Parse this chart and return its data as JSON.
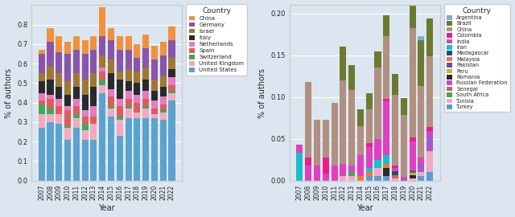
{
  "years": [
    2007,
    2008,
    2009,
    2010,
    2011,
    2012,
    2013,
    2014,
    2015,
    2016,
    2017,
    2018,
    2019,
    2020,
    2021,
    2022
  ],
  "chart1": {
    "title": "Country",
    "ylabel": "% of authors",
    "xlabel": "Year",
    "countries_ordered": [
      "United States",
      "United Kingdom",
      "Switzerland",
      "Spain",
      "Netherlands",
      "Italy",
      "Israel",
      "Germany",
      "China"
    ],
    "legend_order": [
      "China",
      "Germany",
      "Israel",
      "Italy",
      "Netherlands",
      "Spain",
      "Switzerland",
      "United Kingdom",
      "United States"
    ],
    "colors": {
      "United States": "#5ba3cf",
      "United Kingdom": "#f4a9be",
      "Switzerland": "#3daa5b",
      "Spain": "#e05c5c",
      "Netherlands": "#e87ac0",
      "Italy": "#2a2a2a",
      "Israel": "#a07830",
      "Germany": "#8855aa",
      "China": "#f0923c"
    },
    "data": {
      "United States": [
        0.27,
        0.3,
        0.29,
        0.21,
        0.27,
        0.21,
        0.21,
        0.45,
        0.33,
        0.23,
        0.32,
        0.32,
        0.32,
        0.32,
        0.31,
        0.41
      ],
      "United Kingdom": [
        0.07,
        0.04,
        0.05,
        0.06,
        0.05,
        0.05,
        0.08,
        0.04,
        0.04,
        0.08,
        0.05,
        0.03,
        0.05,
        0.02,
        0.04,
        0.04
      ],
      "Switzerland": [
        0.05,
        0.03,
        0.0,
        0.01,
        0.02,
        0.03,
        0.0,
        0.03,
        0.01,
        0.02,
        0.01,
        0.0,
        0.01,
        0.0,
        0.01,
        0.01
      ],
      "Spain": [
        0.02,
        0.05,
        0.04,
        0.08,
        0.04,
        0.04,
        0.04,
        0.04,
        0.05,
        0.05,
        0.04,
        0.05,
        0.04,
        0.03,
        0.03,
        0.03
      ],
      "Netherlands": [
        0.04,
        0.02,
        0.04,
        0.02,
        0.04,
        0.03,
        0.05,
        0.02,
        0.04,
        0.04,
        0.04,
        0.04,
        0.04,
        0.04,
        0.04,
        0.04
      ],
      "Italy": [
        0.06,
        0.08,
        0.06,
        0.06,
        0.06,
        0.08,
        0.1,
        0.0,
        0.08,
        0.1,
        0.05,
        0.06,
        0.06,
        0.05,
        0.05,
        0.04
      ],
      "Israel": [
        0.04,
        0.07,
        0.07,
        0.07,
        0.07,
        0.08,
        0.07,
        0.06,
        0.07,
        0.04,
        0.06,
        0.06,
        0.06,
        0.06,
        0.06,
        0.06
      ],
      "Germany": [
        0.1,
        0.12,
        0.11,
        0.14,
        0.12,
        0.13,
        0.12,
        0.1,
        0.1,
        0.11,
        0.1,
        0.07,
        0.1,
        0.1,
        0.1,
        0.09
      ],
      "China": [
        0.02,
        0.07,
        0.08,
        0.06,
        0.07,
        0.07,
        0.07,
        0.15,
        0.06,
        0.07,
        0.07,
        0.07,
        0.07,
        0.07,
        0.07,
        0.07
      ]
    },
    "ylim": [
      0,
      0.9
    ],
    "yticks": [
      0.0,
      0.1,
      0.2,
      0.3,
      0.4,
      0.5,
      0.6,
      0.7,
      0.8
    ]
  },
  "chart2": {
    "title": "Country",
    "ylabel": "% of authors",
    "xlabel": "Year",
    "countries_ordered": [
      "Turkey",
      "Tunisia",
      "South Africa",
      "Senegal",
      "Russian Federation",
      "Romania",
      "Peru",
      "Pakistan",
      "Malaysia",
      "Madagascar",
      "Iran",
      "India",
      "Colombia",
      "China",
      "Brazil",
      "Argentina"
    ],
    "legend_order": [
      "Argentina",
      "Brazil",
      "China",
      "Colombia",
      "India",
      "Iran",
      "Madagascar",
      "Malaysia",
      "Pakistan",
      "Peru",
      "Romania",
      "Russian Federation",
      "Senegal",
      "South Africa",
      "Tunisia",
      "Turkey"
    ],
    "colors": {
      "Turkey": "#5b9bd5",
      "Tunisia": "#f4a9be",
      "South Africa": "#3daa5b",
      "Senegal": "#e05c5c",
      "Russian Federation": "#a855cc",
      "Romania": "#2a2a2a",
      "Peru": "#c8b420",
      "Pakistan": "#6b4fa0",
      "Malaysia": "#f07830",
      "Madagascar": "#1f4e79",
      "Iran": "#17becf",
      "India": "#e040c0",
      "Colombia": "#e91e8c",
      "China": "#b09080",
      "Brazil": "#6b7a2f",
      "Argentina": "#7bafd4"
    },
    "data": {
      "Argentina": [
        0.0,
        0.0,
        0.0,
        0.0,
        0.0,
        0.0,
        0.0,
        0.0,
        0.0,
        0.0,
        0.0,
        0.0,
        0.0,
        0.0,
        0.005,
        0.0
      ],
      "Brazil": [
        0.0,
        0.0,
        0.0,
        0.0,
        0.0,
        0.04,
        0.03,
        0.02,
        0.02,
        0.02,
        0.025,
        0.025,
        0.02,
        0.06,
        0.055,
        0.045
      ],
      "China": [
        0.0,
        0.09,
        0.055,
        0.045,
        0.075,
        0.1,
        0.09,
        0.035,
        0.04,
        0.085,
        0.075,
        0.085,
        0.075,
        0.13,
        0.085,
        0.085
      ],
      "Colombia": [
        0.0,
        0.01,
        0.0,
        0.02,
        0.0,
        0.0,
        0.0,
        0.0,
        0.005,
        0.0,
        0.003,
        0.003,
        0.0,
        0.005,
        0.0,
        0.005
      ],
      "India": [
        0.01,
        0.018,
        0.018,
        0.008,
        0.018,
        0.015,
        0.008,
        0.025,
        0.025,
        0.025,
        0.065,
        0.004,
        0.004,
        0.035,
        0.008,
        0.004
      ],
      "Iran": [
        0.033,
        0.0,
        0.0,
        0.0,
        0.0,
        0.0,
        0.0,
        0.0,
        0.005,
        0.01,
        0.01,
        0.0,
        0.0,
        0.0,
        0.0,
        0.0
      ],
      "Madagascar": [
        0.0,
        0.0,
        0.0,
        0.0,
        0.0,
        0.0,
        0.0,
        0.0,
        0.0,
        0.0,
        0.0,
        0.005,
        0.0,
        0.0,
        0.0,
        0.0
      ],
      "Malaysia": [
        0.0,
        0.0,
        0.0,
        0.0,
        0.0,
        0.0,
        0.0,
        0.005,
        0.005,
        0.0,
        0.005,
        0.0,
        0.0,
        0.0,
        0.0,
        0.0
      ],
      "Pakistan": [
        0.0,
        0.0,
        0.0,
        0.0,
        0.0,
        0.0,
        0.0,
        0.0,
        0.0,
        0.0,
        0.0,
        0.0,
        0.0,
        0.003,
        0.0,
        0.0
      ],
      "Peru": [
        0.0,
        0.0,
        0.0,
        0.0,
        0.0,
        0.0,
        0.0,
        0.0,
        0.0,
        0.0,
        0.0,
        0.0,
        0.0,
        0.003,
        0.0,
        0.0
      ],
      "Romania": [
        0.0,
        0.0,
        0.0,
        0.0,
        0.0,
        0.0,
        0.0,
        0.0,
        0.0,
        0.0,
        0.01,
        0.0,
        0.0,
        0.003,
        0.0,
        0.0
      ],
      "Russian Federation": [
        0.0,
        0.0,
        0.0,
        0.0,
        0.0,
        0.0,
        0.0,
        0.0,
        0.0,
        0.0,
        0.0,
        0.0,
        0.0,
        0.0,
        0.01,
        0.02
      ],
      "Senegal": [
        0.0,
        0.0,
        0.0,
        0.0,
        0.0,
        0.0,
        0.0,
        0.0,
        0.0,
        0.0,
        0.0,
        0.003,
        0.0,
        0.0,
        0.0,
        0.0
      ],
      "South Africa": [
        0.0,
        0.0,
        0.0,
        0.0,
        0.0,
        0.0,
        0.005,
        0.0,
        0.0,
        0.0,
        0.0,
        0.0,
        0.0,
        0.0,
        0.0,
        0.0
      ],
      "Tunisia": [
        0.0,
        0.0,
        0.0,
        0.0,
        0.0,
        0.005,
        0.005,
        0.0,
        0.0,
        0.01,
        0.0,
        0.003,
        0.0,
        0.003,
        0.005,
        0.025
      ],
      "Turkey": [
        0.0,
        0.0,
        0.0,
        0.0,
        0.0,
        0.0,
        0.0,
        0.0,
        0.005,
        0.005,
        0.005,
        0.0,
        0.0,
        0.0,
        0.005,
        0.01
      ]
    },
    "ylim": [
      0,
      0.21
    ],
    "yticks": [
      0.0,
      0.05,
      0.1,
      0.15,
      0.2
    ]
  },
  "bg_color": "#dce6f0",
  "axes_bg": "#dce6f0"
}
